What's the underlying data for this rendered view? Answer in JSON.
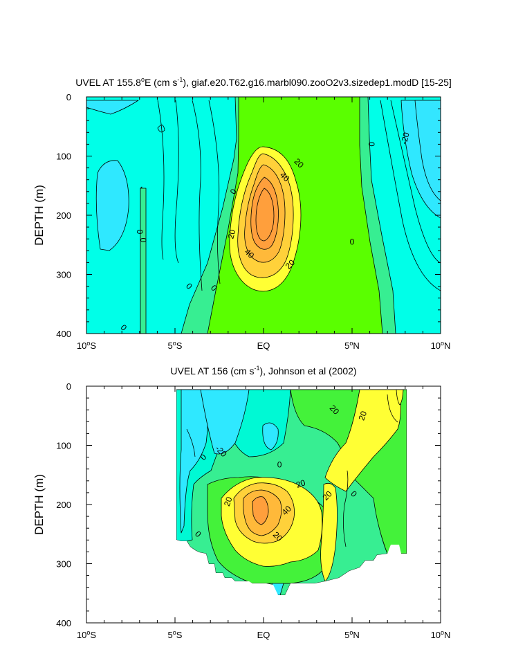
{
  "colors": {
    "neg30": "#33e6ff",
    "neg20": "#2fe8ff",
    "neg10": "#00ffe8",
    "neg10b": "#00f9d4",
    "zero": "#37ee92",
    "pos10": "#44f23a",
    "pos20": "#5aff00",
    "pos30": "#ffff34",
    "pos40": "#ffd13a",
    "pos50": "#ffb93a",
    "pos60": "#ff9f3c",
    "line": "#000000"
  },
  "chart_data": [
    {
      "type": "contour",
      "title_prefix": "UVEL AT 155.8",
      "title_deg": "o",
      "title_unit_open": "E (cm s",
      "title_exp": "-1",
      "title_suffix": "), giaf.e20.T62.g16.marbl090.zooO2v3.sizedep1.modD [15-25]",
      "ylabel": "DEPTH (m)",
      "x_range": [
        -10,
        10
      ],
      "y_range": [
        0,
        400
      ],
      "x_ticks": [
        {
          "value": -10,
          "num": "10",
          "deg": "o",
          "hem": "S"
        },
        {
          "value": -5,
          "num": "5",
          "deg": "o",
          "hem": "S"
        },
        {
          "value": 0,
          "num": "EQ",
          "deg": "",
          "hem": ""
        },
        {
          "value": 5,
          "num": "5",
          "deg": "o",
          "hem": "N"
        },
        {
          "value": 10,
          "num": "10",
          "deg": "o",
          "hem": "N"
        }
      ],
      "y_ticks": [
        0,
        100,
        200,
        300,
        400
      ],
      "contour_labels": [
        {
          "text": "20",
          "x": 2.0,
          "y": 112,
          "rotate": 45
        },
        {
          "text": "40",
          "x": 1.2,
          "y": 135,
          "rotate": 45
        },
        {
          "text": "-20",
          "x": 8.0,
          "y": 70,
          "rotate": -75
        },
        {
          "text": "0",
          "x": 6.1,
          "y": 80,
          "rotate": 90
        },
        {
          "text": "0",
          "x": -1.7,
          "y": 160,
          "rotate": -60
        },
        {
          "text": "20",
          "x": -1.8,
          "y": 232,
          "rotate": -75
        },
        {
          "text": "40",
          "x": -0.8,
          "y": 265,
          "rotate": 45
        },
        {
          "text": "20",
          "x": 1.5,
          "y": 283,
          "rotate": -45
        },
        {
          "text": "0",
          "x": 5.0,
          "y": 245,
          "rotate": 0
        },
        {
          "text": "0",
          "x": -7.0,
          "y": 228,
          "rotate": 90
        },
        {
          "text": "0",
          "x": -6.8,
          "y": 242,
          "rotate": 90
        },
        {
          "text": "0",
          "x": -4.2,
          "y": 320,
          "rotate": 45
        },
        {
          "text": "0",
          "x": -2.8,
          "y": 323,
          "rotate": 45
        },
        {
          "text": "0",
          "x": -7.9,
          "y": 390,
          "rotate": 45
        }
      ]
    },
    {
      "type": "contour",
      "title_prefix": "UVEL AT 156 (cm s",
      "title_exp": "-1",
      "title_suffix": "), Johnson et al (2002)",
      "ylabel": "DEPTH (m)",
      "x_range": [
        -10,
        10
      ],
      "y_range": [
        0,
        400
      ],
      "x_ticks": [
        {
          "value": -10,
          "num": "10",
          "deg": "o",
          "hem": "S"
        },
        {
          "value": -5,
          "num": "5",
          "deg": "o",
          "hem": "S"
        },
        {
          "value": 0,
          "num": "EQ",
          "deg": "",
          "hem": ""
        },
        {
          "value": 5,
          "num": "5",
          "deg": "o",
          "hem": "N"
        },
        {
          "value": 10,
          "num": "10",
          "deg": "o",
          "hem": "N"
        }
      ],
      "y_ticks": [
        0,
        100,
        200,
        300,
        400
      ],
      "contour_labels": [
        {
          "text": "20",
          "x": 4.0,
          "y": 40,
          "rotate": 45
        },
        {
          "text": "20",
          "x": 5.6,
          "y": 50,
          "rotate": -70
        },
        {
          "text": "-20",
          "x": -2.4,
          "y": 110,
          "rotate": 45
        },
        {
          "text": "0",
          "x": -3.4,
          "y": 120,
          "rotate": -45
        },
        {
          "text": "0",
          "x": 0.9,
          "y": 133,
          "rotate": 0
        },
        {
          "text": "20",
          "x": 2.1,
          "y": 165,
          "rotate": -20
        },
        {
          "text": "20",
          "x": 3.6,
          "y": 185,
          "rotate": -45
        },
        {
          "text": "0",
          "x": 5.1,
          "y": 182,
          "rotate": 45
        },
        {
          "text": "20",
          "x": -2.0,
          "y": 195,
          "rotate": -70
        },
        {
          "text": "40",
          "x": 1.3,
          "y": 210,
          "rotate": -45
        },
        {
          "text": "20",
          "x": 0.8,
          "y": 254,
          "rotate": 45
        },
        {
          "text": "0",
          "x": -3.7,
          "y": 250,
          "rotate": 45
        }
      ]
    }
  ]
}
